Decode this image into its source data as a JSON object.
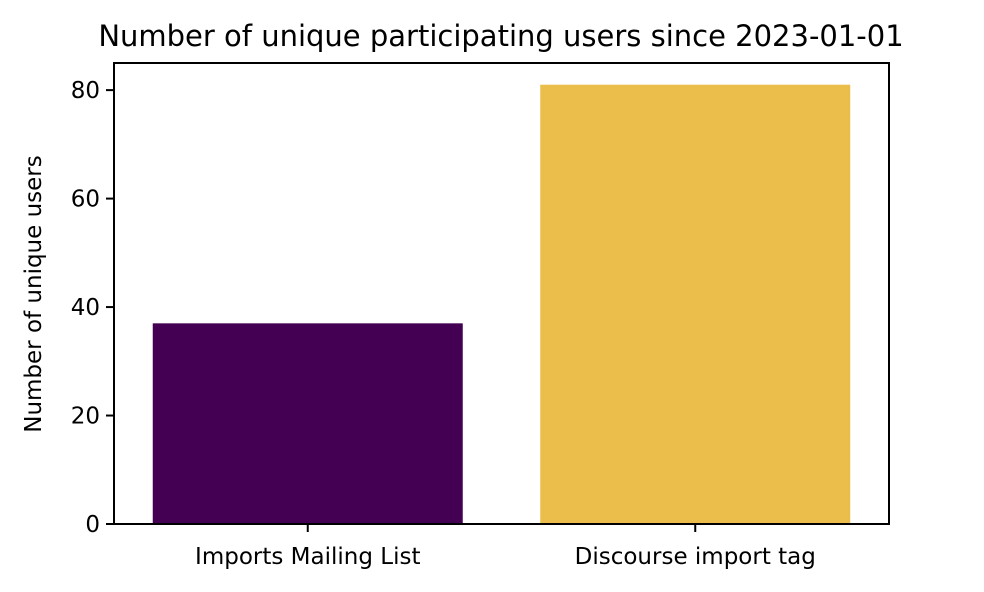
{
  "chart_data": {
    "type": "bar",
    "title": "Number of unique participating users since 2023-01-01",
    "xlabel": "",
    "ylabel": "Number of unique users",
    "categories": [
      "Imports Mailing List",
      "Discourse import tag"
    ],
    "values": [
      37,
      81
    ],
    "bar_colors": [
      "#440154",
      "#ebbd4b"
    ],
    "ylim": [
      0,
      85
    ],
    "yticks": [
      0,
      20,
      40,
      60,
      80
    ],
    "grid": false,
    "legend": "none"
  }
}
